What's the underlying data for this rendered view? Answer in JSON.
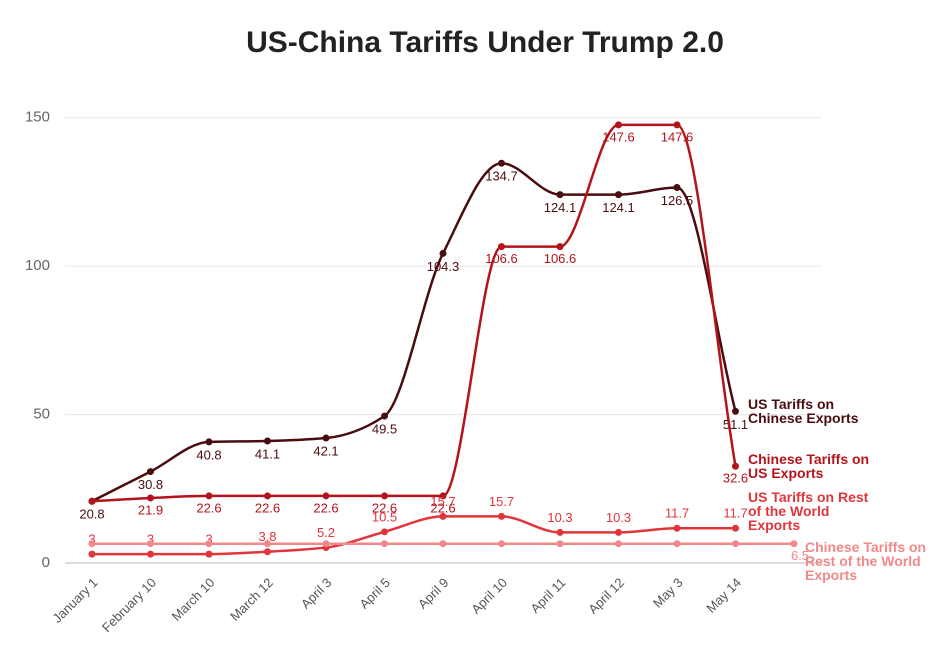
{
  "chart_data": {
    "type": "line",
    "title": "US-China Tariffs Under Trump 2.0",
    "categories": [
      "January 1",
      "February 10",
      "March 10",
      "March 12",
      "April 3",
      "April 5",
      "April 9",
      "April 10",
      "April 11",
      "April 12",
      "May 3",
      "May 14",
      null
    ],
    "series": [
      {
        "name": "US Tariffs on Chinese Exports",
        "color": "#4a0d0f",
        "values": [
          20.8,
          30.8,
          40.8,
          41.1,
          42.1,
          49.5,
          104.3,
          134.7,
          124.1,
          124.1,
          126.5,
          51.1,
          null
        ],
        "value_labels": [
          "20.8",
          "30.8",
          "40.8",
          "41.1",
          "42.1",
          "49.5",
          "104.3",
          "134.7",
          "124.1",
          "124.1",
          "126.5",
          "51.1",
          null
        ]
      },
      {
        "name": "Chinese Tariffs on US Exports",
        "color": "#b3141c",
        "values": [
          20.8,
          21.9,
          22.6,
          22.6,
          22.6,
          22.6,
          22.6,
          106.6,
          106.6,
          147.6,
          147.6,
          32.6,
          null
        ],
        "value_labels": [
          null,
          "21.9",
          "22.6",
          "22.6",
          "22.6",
          "22.6",
          "22.6",
          "106.6",
          "106.6",
          "147.6",
          "147.6",
          "32.6",
          null
        ]
      },
      {
        "name": "US Tariffs on Rest of the World Exports",
        "color": "#e0353b",
        "values": [
          3,
          3,
          3,
          3.8,
          5.2,
          10.5,
          15.7,
          15.7,
          10.3,
          10.3,
          11.7,
          11.7,
          null
        ],
        "value_labels": [
          "3",
          "3",
          "3",
          "3.8",
          "5.2",
          "10.5",
          "15.7",
          "15.7",
          "10.3",
          "10.3",
          "11.7",
          "11.7",
          null
        ]
      },
      {
        "name": "Chinese Tariffs on Rest of the World Exports",
        "color": "#f2888a",
        "values": [
          6.5,
          6.5,
          6.5,
          6.5,
          6.5,
          6.5,
          6.5,
          6.5,
          6.5,
          6.5,
          6.5,
          6.5,
          6.5
        ],
        "value_labels": [
          null,
          null,
          null,
          null,
          null,
          null,
          null,
          null,
          null,
          null,
          null,
          null,
          "6.5"
        ]
      }
    ],
    "ylim": [
      0,
      157
    ],
    "yticks": [
      0,
      50,
      100,
      150
    ],
    "grid": true
  }
}
